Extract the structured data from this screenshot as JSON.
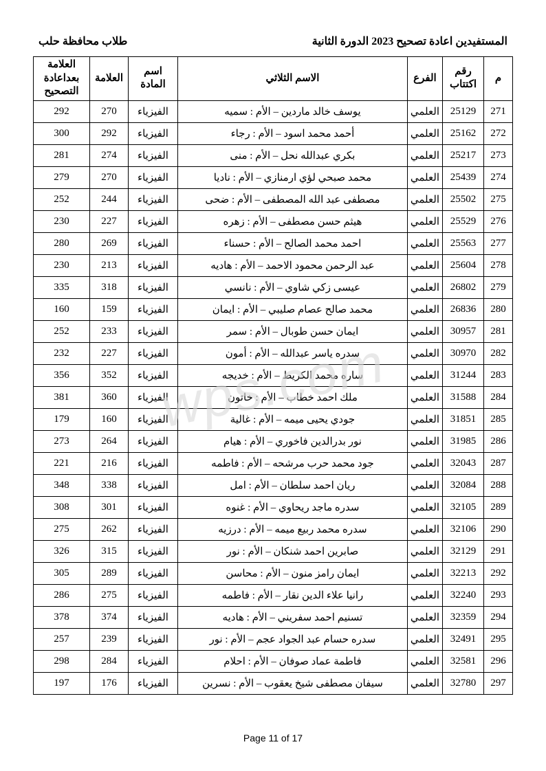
{
  "header": {
    "title_right": "المستفيدين اعادة تصحيح 2023 الدورة الثانية",
    "title_left": "طلاب محافظة حلب"
  },
  "columns": {
    "seq": "م",
    "id": "رقم اكتتاب",
    "branch": "الفرع",
    "name": "الاسم الثلاثي",
    "subject": "اسم المادة",
    "grade": "العلامة",
    "grade_after": "العلامة بعداعادة التصحيح"
  },
  "rows": [
    {
      "seq": 271,
      "id": 25129,
      "branch": "العلمي",
      "name": "يوسف خالد ماردين – الأم : سميه",
      "subject": "الفيزياء",
      "g1": 270,
      "g2": 292
    },
    {
      "seq": 272,
      "id": 25162,
      "branch": "العلمي",
      "name": "أحمد محمد اسود – الأم : رجاء",
      "subject": "الفيزياء",
      "g1": 292,
      "g2": 300
    },
    {
      "seq": 273,
      "id": 25217,
      "branch": "العلمي",
      "name": "بكري عبدالله نحل – الأم : منى",
      "subject": "الفيزياء",
      "g1": 274,
      "g2": 281
    },
    {
      "seq": 274,
      "id": 25439,
      "branch": "العلمي",
      "name": "محمد صبحي لؤي ارمنازي – الأم : ناديا",
      "subject": "الفيزياء",
      "g1": 270,
      "g2": 279
    },
    {
      "seq": 275,
      "id": 25502,
      "branch": "العلمي",
      "name": "مصطفى عبد الله المصطفى – الأم : ضحى",
      "subject": "الفيزياء",
      "g1": 244,
      "g2": 252
    },
    {
      "seq": 276,
      "id": 25529,
      "branch": "العلمي",
      "name": "هيثم حسن مصطفى – الأم : زهره",
      "subject": "الفيزياء",
      "g1": 227,
      "g2": 230
    },
    {
      "seq": 277,
      "id": 25563,
      "branch": "العلمي",
      "name": "احمد محمد الصالح – الأم : حسناء",
      "subject": "الفيزياء",
      "g1": 269,
      "g2": 280
    },
    {
      "seq": 278,
      "id": 25604,
      "branch": "العلمي",
      "name": "عبد الرحمن محمود الاحمد – الأم : هاديه",
      "subject": "الفيزياء",
      "g1": 213,
      "g2": 230
    },
    {
      "seq": 279,
      "id": 26802,
      "branch": "العلمي",
      "name": "عيسى زكي شاوي – الأم : نانسي",
      "subject": "الفيزياء",
      "g1": 318,
      "g2": 335
    },
    {
      "seq": 280,
      "id": 26836,
      "branch": "العلمي",
      "name": "محمد صالح عصام صليبي – الأم : ايمان",
      "subject": "الفيزياء",
      "g1": 159,
      "g2": 160
    },
    {
      "seq": 281,
      "id": 30957,
      "branch": "العلمي",
      "name": "ايمان حسن طوبال – الأم : سمر",
      "subject": "الفيزياء",
      "g1": 233,
      "g2": 252
    },
    {
      "seq": 282,
      "id": 30970,
      "branch": "العلمي",
      "name": "سدره ياسر عبدالله – الأم : أمون",
      "subject": "الفيزياء",
      "g1": 227,
      "g2": 232
    },
    {
      "seq": 283,
      "id": 31244,
      "branch": "العلمي",
      "name": "ساره محمد الكريط – الأم : خديجه",
      "subject": "الفيزياء",
      "g1": 352,
      "g2": 356
    },
    {
      "seq": 284,
      "id": 31588,
      "branch": "العلمي",
      "name": "ملك احمد خطاب – الأم : خاتون",
      "subject": "الفيزياء",
      "g1": 360,
      "g2": 381
    },
    {
      "seq": 285,
      "id": 31851,
      "branch": "العلمي",
      "name": "جودي يحيى ميمه – الأم : غالية",
      "subject": "الفيزياء",
      "g1": 160,
      "g2": 179
    },
    {
      "seq": 286,
      "id": 31985,
      "branch": "العلمي",
      "name": "نور بدرالدين فاخوري – الأم : هيام",
      "subject": "الفيزياء",
      "g1": 264,
      "g2": 273
    },
    {
      "seq": 287,
      "id": 32043,
      "branch": "العلمي",
      "name": "جود محمد حرب مرشحه – الأم : فاطمه",
      "subject": "الفيزياء",
      "g1": 216,
      "g2": 221
    },
    {
      "seq": 288,
      "id": 32084,
      "branch": "العلمي",
      "name": "ريان احمد سلطان – الأم : امل",
      "subject": "الفيزياء",
      "g1": 338,
      "g2": 348
    },
    {
      "seq": 289,
      "id": 32105,
      "branch": "العلمي",
      "name": "سدره ماجد ريحاوي – الأم : غنوه",
      "subject": "الفيزياء",
      "g1": 301,
      "g2": 308
    },
    {
      "seq": 290,
      "id": 32106,
      "branch": "العلمي",
      "name": "سدره محمد ربيع ميمه – الأم : درزيه",
      "subject": "الفيزياء",
      "g1": 262,
      "g2": 275
    },
    {
      "seq": 291,
      "id": 32129,
      "branch": "العلمي",
      "name": "صابرين احمد شنكان – الأم : نور",
      "subject": "الفيزياء",
      "g1": 315,
      "g2": 326
    },
    {
      "seq": 292,
      "id": 32213,
      "branch": "العلمي",
      "name": "ايمان رامز منون – الأم : محاسن",
      "subject": "الفيزياء",
      "g1": 289,
      "g2": 305
    },
    {
      "seq": 293,
      "id": 32240,
      "branch": "العلمي",
      "name": "رانيا علاء الدين نقار – الأم : فاطمه",
      "subject": "الفيزياء",
      "g1": 275,
      "g2": 286
    },
    {
      "seq": 294,
      "id": 32359,
      "branch": "العلمي",
      "name": "تسنيم احمد سفريني – الأم : هاديه",
      "subject": "الفيزياء",
      "g1": 374,
      "g2": 378
    },
    {
      "seq": 295,
      "id": 32491,
      "branch": "العلمي",
      "name": "سدره حسام عبد الجواد عجم – الأم : نور",
      "subject": "الفيزياء",
      "g1": 239,
      "g2": 257
    },
    {
      "seq": 296,
      "id": 32581,
      "branch": "العلمي",
      "name": "فاطمة عماد صوفان – الأم : احلام",
      "subject": "الفيزياء",
      "g1": 284,
      "g2": 298
    },
    {
      "seq": 297,
      "id": 32780,
      "branch": "العلمي",
      "name": "سيفان مصطفى شيخ يعقوب – الأم : نسرين",
      "subject": "الفيزياء",
      "g1": 176,
      "g2": 197
    }
  ],
  "watermark": "wps.com",
  "footer": "Page 11 of 17"
}
